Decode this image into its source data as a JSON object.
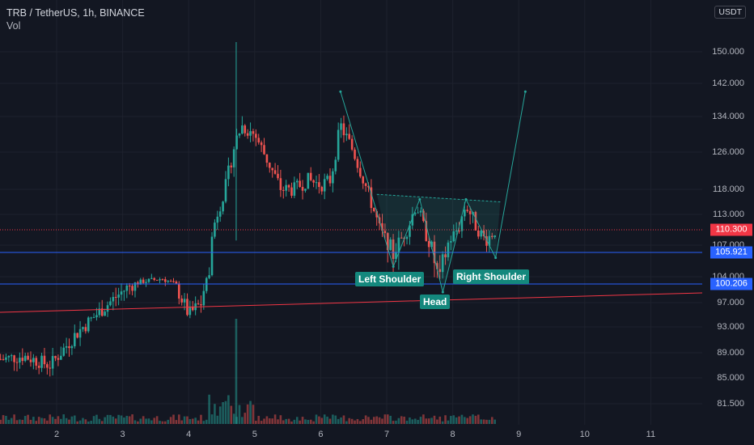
{
  "header": {
    "title": "TRB / TetherUS, 1h, BINANCE",
    "indicator": "Vol"
  },
  "currency_button": "USDT",
  "price_axis": {
    "ticks": [
      "150.000",
      "142.000",
      "134.000",
      "126.000",
      "118.000",
      "113.000",
      "107.000",
      "104.000",
      "97.000",
      "93.000",
      "89.000",
      "85.000",
      "81.500"
    ]
  },
  "time_axis": {
    "ticks": [
      "2",
      "3",
      "4",
      "5",
      "6",
      "7",
      "8",
      "9",
      "10",
      "11"
    ]
  },
  "price_tags": [
    {
      "value": "110.300",
      "color": "#f23645"
    },
    {
      "value": "105.921",
      "color": "#2962ff"
    },
    {
      "value": "100.206",
      "color": "#2962ff"
    }
  ],
  "annotations": {
    "left_shoulder": "Left Shoulder",
    "head": "Head",
    "right_shoulder": "Right Shoulder"
  },
  "colors": {
    "background": "#131722",
    "up": "#26a69a",
    "down": "#ef5350",
    "grid": "#1e222d",
    "horizontal_line": "#2962ff",
    "trend_line": "#f23645",
    "pattern": "#26a69a"
  },
  "chart_data": {
    "type": "candlestick",
    "symbol": "TRB / TetherUS",
    "interval": "1h",
    "exchange": "BINANCE",
    "key_levels": [
      110.3,
      105.921,
      100.206
    ],
    "pattern_points": [
      {
        "label": "start",
        "day": 6.3,
        "price": 140
      },
      {
        "label": "Left Shoulder",
        "day": 7.1,
        "price": 104.8
      },
      {
        "label": "neckline-left",
        "day": 7.5,
        "price": 116
      },
      {
        "label": "Head",
        "day": 7.85,
        "price": 98.8
      },
      {
        "label": "neckline-right",
        "day": 8.2,
        "price": 116
      },
      {
        "label": "Right Shoulder",
        "day": 8.65,
        "price": 105.5
      },
      {
        "label": "target",
        "day": 9.1,
        "price": 140
      }
    ],
    "closes_approx": [
      {
        "day": 1.2,
        "price": 88
      },
      {
        "day": 1.5,
        "price": 88.5
      },
      {
        "day": 1.9,
        "price": 87
      },
      {
        "day": 2.3,
        "price": 92
      },
      {
        "day": 2.7,
        "price": 96
      },
      {
        "day": 3.0,
        "price": 99
      },
      {
        "day": 3.3,
        "price": 101.5
      },
      {
        "day": 3.6,
        "price": 103
      },
      {
        "day": 3.8,
        "price": 100
      },
      {
        "day": 4.0,
        "price": 95
      },
      {
        "day": 4.2,
        "price": 97
      },
      {
        "day": 4.4,
        "price": 112
      },
      {
        "day": 4.55,
        "price": 118
      },
      {
        "day": 4.7,
        "price": 128
      },
      {
        "day": 4.8,
        "price": 132
      },
      {
        "day": 5.0,
        "price": 130
      },
      {
        "day": 5.2,
        "price": 124
      },
      {
        "day": 5.4,
        "price": 118
      },
      {
        "day": 5.6,
        "price": 118
      },
      {
        "day": 5.8,
        "price": 120
      },
      {
        "day": 6.0,
        "price": 119
      },
      {
        "day": 6.15,
        "price": 120
      },
      {
        "day": 6.3,
        "price": 132
      },
      {
        "day": 6.5,
        "price": 126
      },
      {
        "day": 6.7,
        "price": 118
      },
      {
        "day": 6.9,
        "price": 110
      },
      {
        "day": 7.1,
        "price": 106
      },
      {
        "day": 7.3,
        "price": 110
      },
      {
        "day": 7.45,
        "price": 115
      },
      {
        "day": 7.6,
        "price": 109
      },
      {
        "day": 7.8,
        "price": 103
      },
      {
        "day": 7.95,
        "price": 108
      },
      {
        "day": 8.1,
        "price": 111
      },
      {
        "day": 8.2,
        "price": 115
      },
      {
        "day": 8.35,
        "price": 111
      },
      {
        "day": 8.5,
        "price": 108
      },
      {
        "day": 8.65,
        "price": 110.3
      }
    ]
  }
}
